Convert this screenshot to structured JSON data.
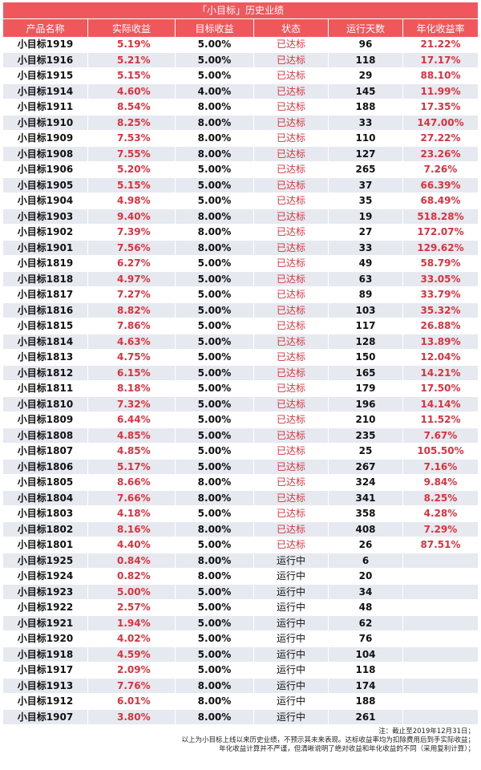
{
  "title": "「小目标」历史业绩",
  "headers": [
    "产品名称",
    "实际收益",
    "目标收益",
    "状态",
    "运行天数",
    "年化收益率"
  ],
  "rows": [
    [
      "小目标1919",
      "5.19%",
      "5.00%",
      "已达标",
      "96",
      "21.22%"
    ],
    [
      "小目标1916",
      "5.21%",
      "5.00%",
      "已达标",
      "118",
      "17.17%"
    ],
    [
      "小目标1915",
      "5.15%",
      "5.00%",
      "已达标",
      "29",
      "88.10%"
    ],
    [
      "小目标1914",
      "4.60%",
      "4.00%",
      "已达标",
      "145",
      "11.99%"
    ],
    [
      "小目标1911",
      "8.54%",
      "8.00%",
      "已达标",
      "188",
      "17.35%"
    ],
    [
      "小目标1910",
      "8.25%",
      "8.00%",
      "已达标",
      "33",
      "147.00%"
    ],
    [
      "小目标1909",
      "7.53%",
      "8.00%",
      "已达标",
      "110",
      "27.22%"
    ],
    [
      "小目标1908",
      "7.55%",
      "8.00%",
      "已达标",
      "127",
      "23.26%"
    ],
    [
      "小目标1906",
      "5.20%",
      "5.00%",
      "已达标",
      "265",
      "7.26%"
    ],
    [
      "小目标1905",
      "5.15%",
      "5.00%",
      "已达标",
      "37",
      "66.39%"
    ],
    [
      "小目标1904",
      "4.98%",
      "5.00%",
      "已达标",
      "35",
      "68.49%"
    ],
    [
      "小目标1903",
      "9.40%",
      "8.00%",
      "已达标",
      "19",
      "518.28%"
    ],
    [
      "小目标1902",
      "7.39%",
      "8.00%",
      "已达标",
      "27",
      "172.07%"
    ],
    [
      "小目标1901",
      "7.56%",
      "8.00%",
      "已达标",
      "33",
      "129.62%"
    ],
    [
      "小目标1819",
      "6.27%",
      "5.00%",
      "已达标",
      "49",
      "58.79%"
    ],
    [
      "小目标1818",
      "4.97%",
      "5.00%",
      "已达标",
      "63",
      "33.05%"
    ],
    [
      "小目标1817",
      "7.27%",
      "5.00%",
      "已达标",
      "89",
      "33.79%"
    ],
    [
      "小目标1816",
      "8.82%",
      "5.00%",
      "已达标",
      "103",
      "35.32%"
    ],
    [
      "小目标1815",
      "7.86%",
      "5.00%",
      "已达标",
      "117",
      "26.88%"
    ],
    [
      "小目标1814",
      "4.63%",
      "5.00%",
      "已达标",
      "128",
      "13.89%"
    ],
    [
      "小目标1813",
      "4.75%",
      "5.00%",
      "已达标",
      "150",
      "12.04%"
    ],
    [
      "小目标1812",
      "6.15%",
      "5.00%",
      "已达标",
      "165",
      "14.21%"
    ],
    [
      "小目标1811",
      "8.18%",
      "5.00%",
      "已达标",
      "179",
      "17.50%"
    ],
    [
      "小目标1810",
      "7.32%",
      "5.00%",
      "已达标",
      "196",
      "14.14%"
    ],
    [
      "小目标1809",
      "6.44%",
      "5.00%",
      "已达标",
      "210",
      "11.52%"
    ],
    [
      "小目标1808",
      "4.85%",
      "5.00%",
      "已达标",
      "235",
      "7.67%"
    ],
    [
      "小目标1807",
      "4.85%",
      "5.00%",
      "已达标",
      "25",
      "105.50%"
    ],
    [
      "小目标1806",
      "5.17%",
      "5.00%",
      "已达标",
      "267",
      "7.16%"
    ],
    [
      "小目标1805",
      "8.66%",
      "8.00%",
      "已达标",
      "324",
      "9.84%"
    ],
    [
      "小目标1804",
      "7.66%",
      "8.00%",
      "已达标",
      "341",
      "8.25%"
    ],
    [
      "小目标1803",
      "4.18%",
      "5.00%",
      "已达标",
      "358",
      "4.28%"
    ],
    [
      "小目标1802",
      "8.16%",
      "8.00%",
      "已达标",
      "408",
      "7.29%"
    ],
    [
      "小目标1801",
      "4.40%",
      "5.00%",
      "已达标",
      "26",
      "87.51%"
    ],
    [
      "小目标1925",
      "0.84%",
      "8.00%",
      "运行中",
      "6",
      ""
    ],
    [
      "小目标1924",
      "0.82%",
      "8.00%",
      "运行中",
      "20",
      ""
    ],
    [
      "小目标1923",
      "5.00%",
      "5.00%",
      "运行中",
      "34",
      ""
    ],
    [
      "小目标1922",
      "2.57%",
      "5.00%",
      "运行中",
      "48",
      ""
    ],
    [
      "小目标1921",
      "1.94%",
      "5.00%",
      "运行中",
      "62",
      ""
    ],
    [
      "小目标1920",
      "4.02%",
      "5.00%",
      "运行中",
      "76",
      ""
    ],
    [
      "小目标1918",
      "4.59%",
      "5.00%",
      "运行中",
      "104",
      ""
    ],
    [
      "小目标1917",
      "2.09%",
      "5.00%",
      "运行中",
      "118",
      ""
    ],
    [
      "小目标1913",
      "7.76%",
      "8.00%",
      "运行中",
      "174",
      ""
    ],
    [
      "小目标1912",
      "6.01%",
      "8.00%",
      "运行中",
      "188",
      ""
    ],
    [
      "小目标1907",
      "3.80%",
      "8.00%",
      "运行中",
      "261",
      ""
    ]
  ],
  "status_done_label": "已达标",
  "notes": [
    "注：截止至2019年12月31日；",
    "以上为小目标上线以来历史业绩，不预示其未来表现。达标收益率均为扣除费用后到手实际收益；",
    "年化收益计算并不严谨，但清晰说明了绝对收益和年化收益的不同（采用复利计算）；"
  ]
}
